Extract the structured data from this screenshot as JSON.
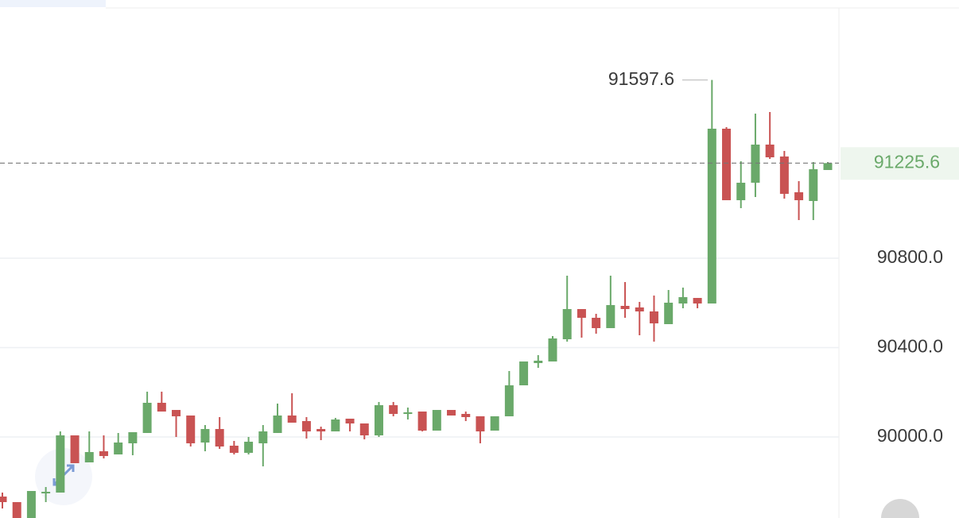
{
  "chart_data": {
    "type": "candlestick",
    "up_color": "#6aa96a",
    "down_color": "#c95353",
    "ylim": [
      89637.3,
      91955.6
    ],
    "yticks": [
      {
        "value": 90000,
        "label": "90000.0"
      },
      {
        "value": 90400,
        "label": "90400.0"
      },
      {
        "value": 90800,
        "label": "90800.0"
      }
    ],
    "grid": true,
    "current_price": 91225.6,
    "high_annotation": 91597.6,
    "open": [
      89733.3,
      89708.4,
      89637.3,
      89751.1,
      89751.1,
      90007.1,
      89886.2,
      89936.0,
      89921.8,
      89971.6,
      90017.8,
      90152.9,
      90120.9,
      90096.0,
      89975.1,
      90035.6,
      89960.9,
      89928.9,
      89971.6,
      90017.8,
      90096.0,
      90071.1,
      90035.6,
      90024.9,
      90081.8,
      90060.4,
      90007.1,
      90142.2,
      90103.1,
      90113.8,
      90028.4,
      90120.9,
      90103.1,
      90092.5,
      90028.4,
      90092.5,
      90231.1,
      90330.7,
      90337.8,
      90437.3,
      90572.4,
      90533.3,
      90487.1,
      90586.7,
      90579.6,
      90561.8,
      90504.9,
      90597.3,
      90622.2,
      90597.3,
      91379.6,
      91059.6,
      91137.8,
      91308.5,
      91255.2,
      91095.1,
      91056.0,
      91194.7
    ],
    "high": [
      89751.1,
      89708.4,
      89758.2,
      89776.0,
      90024.9,
      90007.1,
      90024.9,
      90007.1,
      90017.8,
      90021.3,
      90202.7,
      90202.7,
      90120.9,
      90096.0,
      90053.3,
      90088.9,
      89982.2,
      90000.0,
      90053.3,
      90149.3,
      90195.6,
      90088.9,
      90046.2,
      90085.3,
      90081.8,
      90060.4,
      90156.5,
      90156.5,
      90131.6,
      90113.8,
      90120.9,
      90120.9,
      90113.8,
      90092.5,
      90092.5,
      90295.1,
      90337.8,
      90366.2,
      90451.6,
      90721.8,
      90572.4,
      90551.1,
      90721.8,
      90693.3,
      90604.4,
      90632.9,
      90657.8,
      90668.5,
      90622.2,
      91597.6,
      91386.7,
      91233.8,
      91447.1,
      91454.3,
      91280.1,
      91144.9,
      91230.3,
      91230.3
    ],
    "low": [
      89680.0,
      89637.3,
      89637.3,
      89708.4,
      89751.1,
      89882.7,
      89886.2,
      89904.0,
      89921.8,
      89918.2,
      90017.8,
      90113.8,
      90000.0,
      89957.3,
      89936.0,
      89946.7,
      89921.8,
      89921.8,
      89868.4,
      90017.8,
      90064.0,
      89992.9,
      89985.8,
      90024.9,
      90024.9,
      89989.3,
      90000.0,
      90092.5,
      90078.2,
      90024.9,
      90028.4,
      90096.0,
      90071.1,
      89971.6,
      90028.4,
      90092.5,
      90231.1,
      90309.3,
      90337.8,
      90426.7,
      90444.5,
      90462.2,
      90487.1,
      90533.3,
      90455.1,
      90426.7,
      90504.9,
      90576.0,
      90576.0,
      90597.3,
      91059.6,
      91024.0,
      91073.8,
      91244.5,
      91066.7,
      90970.7,
      90970.7,
      91194.7
    ],
    "close": [
      89708.4,
      89637.3,
      89758.2,
      89754.6,
      90007.1,
      89882.7,
      89932.4,
      89914.7,
      89975.1,
      90021.3,
      90152.9,
      90113.8,
      90092.5,
      89971.6,
      90035.6,
      89957.3,
      89928.9,
      89978.7,
      90024.9,
      90096.0,
      90064.0,
      90024.9,
      90024.9,
      90078.2,
      90060.4,
      90007.1,
      90142.2,
      90103.1,
      90110.2,
      90028.4,
      90120.9,
      90096.0,
      90088.9,
      90024.9,
      90092.5,
      90231.1,
      90337.8,
      90341.3,
      90440.9,
      90572.4,
      90533.3,
      90487.1,
      90590.2,
      90572.4,
      90561.8,
      90508.4,
      90600.9,
      90625.8,
      90597.3,
      91379.6,
      91059.6,
      91137.8,
      91308.5,
      91251.6,
      91088.0,
      91059.6,
      91198.3,
      91225.6
    ]
  }
}
